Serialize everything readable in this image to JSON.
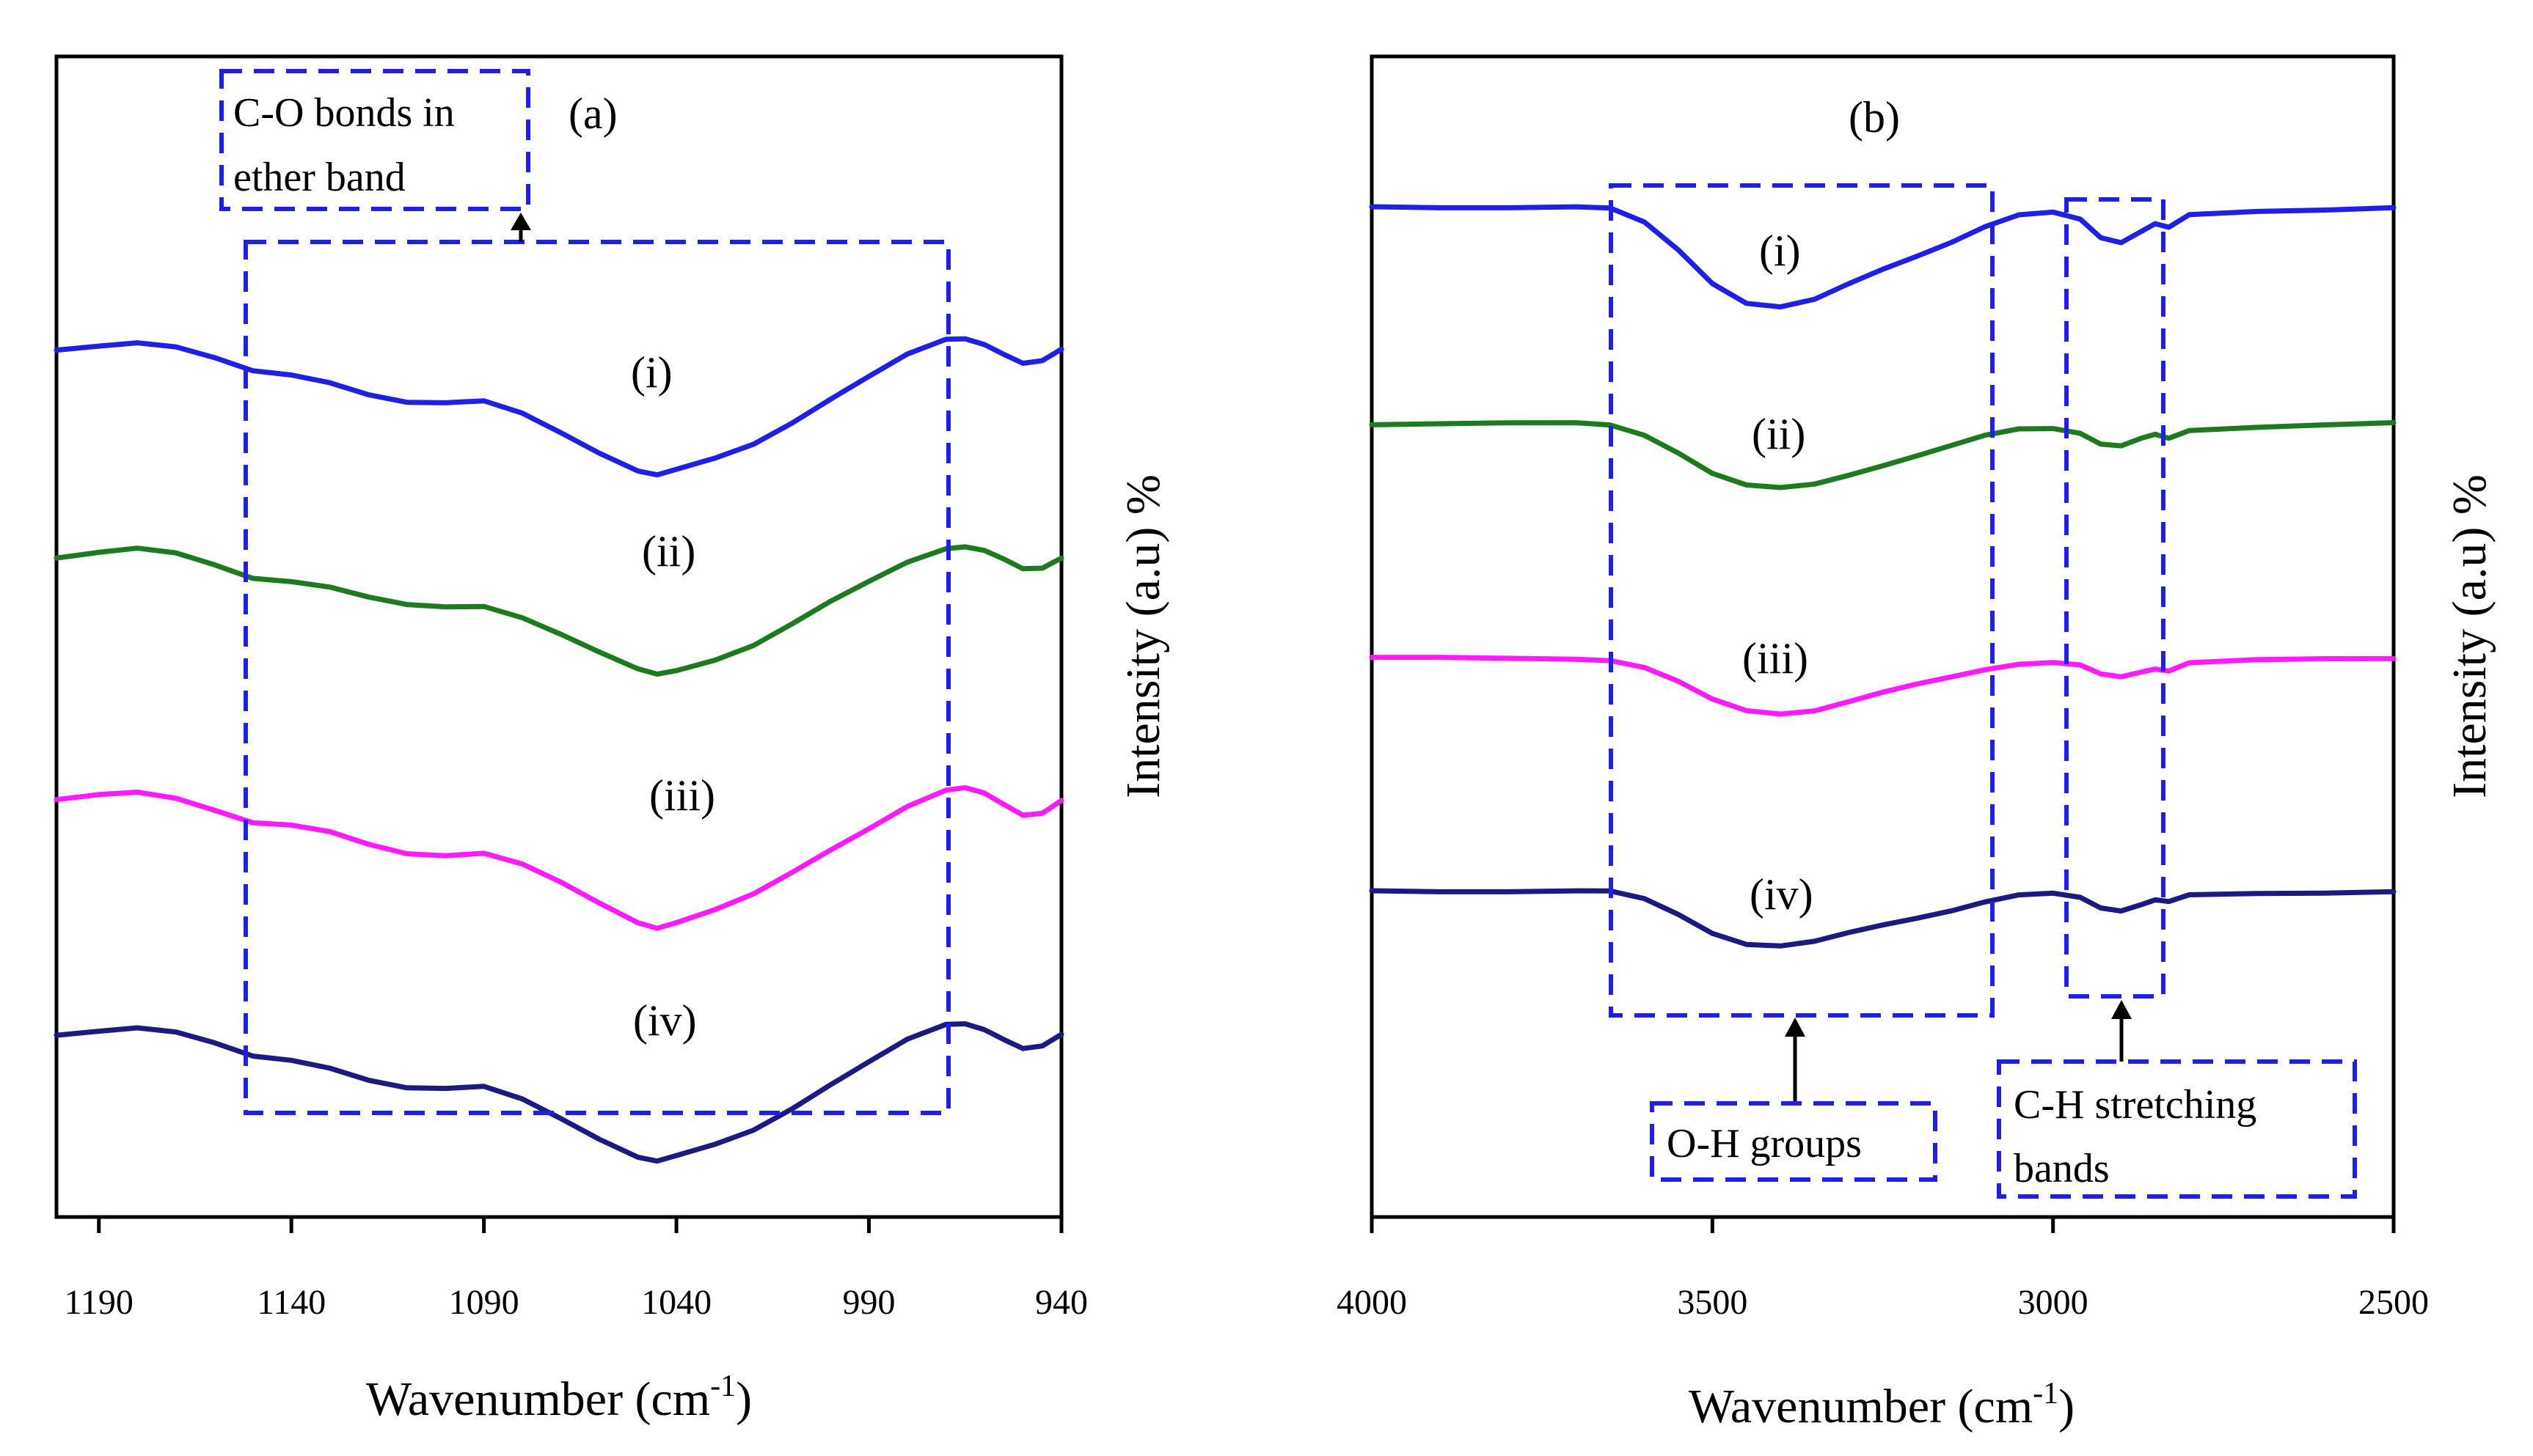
{
  "chart_data": [
    {
      "type": "line",
      "panel_label": "(a)",
      "xlabel": "Wavenumber (cm",
      "xlabel_sup": "-1",
      "xlabel_close": ")",
      "ylabel": "Intensity (a.u) %",
      "xlim": [
        1201,
        940
      ],
      "x_ticks": [
        1190,
        1140,
        1090,
        1040,
        990,
        940
      ],
      "y_ticks_shown": false,
      "annotations": {
        "region_box": {
          "from": 1150,
          "to": 969
        },
        "note": {
          "lines": [
            "C-O bonds in",
            "ether band"
          ],
          "points_to": 1082
        }
      },
      "series": [
        {
          "name": "(i)",
          "color": "#1f1fe6",
          "level": 1,
          "x": [
            1201,
            1190,
            1180,
            1170,
            1160,
            1150,
            1140,
            1130,
            1120,
            1110,
            1100,
            1090,
            1080,
            1070,
            1060,
            1050,
            1045,
            1040,
            1030,
            1020,
            1010,
            1000,
            990,
            980,
            970,
            965,
            960,
            955,
            950,
            945,
            940
          ],
          "y": [
            0.77,
            0.74,
            0.72,
            0.75,
            0.82,
            0.9,
            0.92,
            0.96,
            1.03,
            1.08,
            1.09,
            1.08,
            1.15,
            1.26,
            1.38,
            1.49,
            1.52,
            1.49,
            1.42,
            1.33,
            1.2,
            1.06,
            0.93,
            0.8,
            0.71,
            0.7,
            0.73,
            0.79,
            0.85,
            0.84,
            0.77
          ]
        },
        {
          "name": "(ii)",
          "color": "#1e7a1e",
          "level": 2,
          "x": [
            1201,
            1190,
            1180,
            1170,
            1160,
            1150,
            1140,
            1130,
            1120,
            1110,
            1100,
            1090,
            1080,
            1070,
            1060,
            1050,
            1045,
            1040,
            1030,
            1020,
            1010,
            1000,
            990,
            980,
            970,
            965,
            960,
            955,
            950,
            945,
            940
          ],
          "y": [
            0.77,
            0.74,
            0.72,
            0.75,
            0.82,
            0.9,
            0.92,
            0.96,
            1.03,
            1.08,
            1.09,
            1.08,
            1.15,
            1.26,
            1.38,
            1.49,
            1.52,
            1.49,
            1.42,
            1.33,
            1.2,
            1.06,
            0.93,
            0.8,
            0.71,
            0.7,
            0.73,
            0.79,
            0.85,
            0.84,
            0.77
          ]
        },
        {
          "name": "(iii)",
          "color": "#ff1aff",
          "level": 3,
          "x": [
            1201,
            1190,
            1180,
            1170,
            1160,
            1150,
            1140,
            1130,
            1120,
            1110,
            1100,
            1090,
            1080,
            1070,
            1060,
            1050,
            1045,
            1040,
            1030,
            1020,
            1010,
            1000,
            990,
            980,
            970,
            965,
            960,
            955,
            950,
            945,
            940
          ],
          "y": [
            0.77,
            0.74,
            0.72,
            0.75,
            0.82,
            0.9,
            0.92,
            0.96,
            1.03,
            1.08,
            1.09,
            1.08,
            1.15,
            1.26,
            1.38,
            1.49,
            1.52,
            1.49,
            1.42,
            1.33,
            1.2,
            1.06,
            0.93,
            0.8,
            0.71,
            0.7,
            0.73,
            0.79,
            0.85,
            0.84,
            0.77
          ]
        },
        {
          "name": "(iv)",
          "color": "#1a1a80",
          "level": 4,
          "x": [
            1201,
            1190,
            1180,
            1170,
            1160,
            1150,
            1140,
            1130,
            1120,
            1110,
            1100,
            1090,
            1080,
            1070,
            1060,
            1050,
            1045,
            1040,
            1030,
            1020,
            1010,
            1000,
            990,
            980,
            970,
            965,
            960,
            955,
            950,
            945,
            940
          ],
          "y": [
            0.77,
            0.74,
            0.72,
            0.75,
            0.82,
            0.9,
            0.92,
            0.96,
            1.03,
            1.08,
            1.09,
            1.08,
            1.15,
            1.26,
            1.38,
            1.49,
            1.52,
            1.49,
            1.42,
            1.33,
            1.2,
            1.06,
            0.93,
            0.8,
            0.71,
            0.7,
            0.73,
            0.79,
            0.85,
            0.84,
            0.77
          ]
        }
      ]
    },
    {
      "type": "line",
      "panel_label": "(b)",
      "xlabel": "Wavenumber (cm",
      "xlabel_sup": "-1",
      "xlabel_close": ")",
      "ylabel": "Intensity (a.u) %",
      "xlim": [
        4000,
        2500
      ],
      "x_ticks": [
        4000,
        3500,
        3000,
        2500
      ],
      "y_ticks_shown": false,
      "annotations": {
        "region_boxes": [
          {
            "from": 3650,
            "to": 3090,
            "note": "O-H groups",
            "points_to": 3380
          },
          {
            "from": 2980,
            "to": 2835,
            "note_lines": [
              "C-H stretching",
              "bands"
            ],
            "points_to": 2900
          }
        ]
      },
      "series": [
        {
          "name": "(i)",
          "color": "#1f1fe6",
          "level": 1,
          "depth": 1.0,
          "x": [
            4000,
            3900,
            3800,
            3700,
            3650,
            3600,
            3550,
            3500,
            3450,
            3400,
            3350,
            3300,
            3250,
            3200,
            3150,
            3100,
            3050,
            3000,
            2960,
            2930,
            2900,
            2870,
            2850,
            2830,
            2800,
            2700,
            2600,
            2500
          ],
          "y": [
            0.0,
            0.0,
            0.0,
            0.0,
            0.02,
            0.15,
            0.4,
            0.7,
            0.88,
            0.92,
            0.86,
            0.72,
            0.58,
            0.45,
            0.32,
            0.18,
            0.08,
            0.06,
            0.12,
            0.28,
            0.32,
            0.22,
            0.16,
            0.2,
            0.08,
            0.04,
            0.02,
            0.0
          ]
        },
        {
          "name": "(ii)",
          "color": "#1e7a1e",
          "level": 2,
          "depth": 0.65,
          "x": [
            4000,
            3900,
            3800,
            3700,
            3650,
            3600,
            3550,
            3500,
            3450,
            3400,
            3350,
            3300,
            3250,
            3200,
            3150,
            3100,
            3050,
            3000,
            2960,
            2930,
            2900,
            2870,
            2850,
            2830,
            2800,
            2700,
            2600,
            2500
          ],
          "y": [
            0.0,
            0.0,
            0.0,
            0.0,
            0.02,
            0.15,
            0.4,
            0.7,
            0.88,
            0.92,
            0.86,
            0.72,
            0.58,
            0.45,
            0.32,
            0.18,
            0.08,
            0.06,
            0.12,
            0.28,
            0.32,
            0.22,
            0.16,
            0.2,
            0.08,
            0.04,
            0.02,
            0.0
          ]
        },
        {
          "name": "(iii)",
          "color": "#ff1aff",
          "level": 3,
          "depth": 0.55,
          "x": [
            4000,
            3900,
            3800,
            3700,
            3650,
            3600,
            3550,
            3500,
            3450,
            3400,
            3350,
            3300,
            3250,
            3200,
            3150,
            3100,
            3050,
            3000,
            2960,
            2930,
            2900,
            2870,
            2850,
            2830,
            2800,
            2700,
            2600,
            2500
          ],
          "y": [
            0.0,
            0.0,
            0.0,
            0.0,
            0.02,
            0.15,
            0.4,
            0.7,
            0.88,
            0.92,
            0.86,
            0.72,
            0.58,
            0.45,
            0.32,
            0.18,
            0.08,
            0.06,
            0.12,
            0.28,
            0.32,
            0.22,
            0.16,
            0.2,
            0.08,
            0.04,
            0.02,
            0.0
          ]
        },
        {
          "name": "(iv)",
          "color": "#1a1a80",
          "level": 4,
          "depth": 0.55,
          "x": [
            4000,
            3900,
            3800,
            3700,
            3650,
            3600,
            3550,
            3500,
            3450,
            3400,
            3350,
            3300,
            3250,
            3200,
            3150,
            3100,
            3050,
            3000,
            2960,
            2930,
            2900,
            2870,
            2850,
            2830,
            2800,
            2700,
            2600,
            2500
          ],
          "y": [
            0.0,
            0.0,
            0.0,
            0.0,
            0.02,
            0.15,
            0.4,
            0.7,
            0.88,
            0.92,
            0.86,
            0.72,
            0.58,
            0.45,
            0.32,
            0.18,
            0.08,
            0.06,
            0.12,
            0.28,
            0.32,
            0.22,
            0.16,
            0.2,
            0.08,
            0.04,
            0.02,
            0.0
          ]
        }
      ]
    }
  ],
  "colors": {
    "frame": "#000000",
    "annotation_box": "#1f1fe6"
  }
}
